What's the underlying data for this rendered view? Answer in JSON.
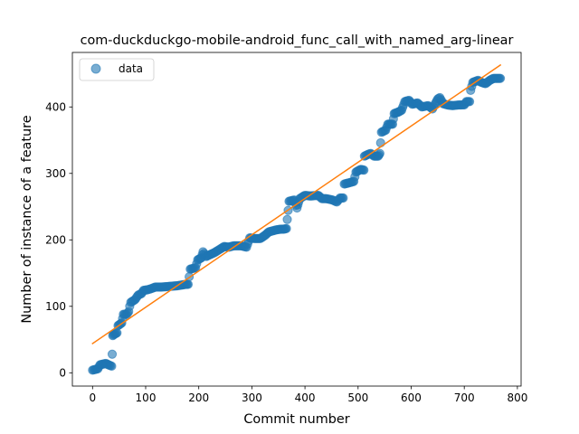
{
  "chart_data": {
    "type": "scatter",
    "title": "com-duckduckgo-mobile-android_func_call_with_named_arg-linear",
    "xlabel": "Commit number",
    "ylabel": "Number of instance of a feature",
    "xlim": [
      -38,
      807
    ],
    "ylim": [
      -20,
      482
    ],
    "xticks": [
      0,
      100,
      200,
      300,
      400,
      500,
      600,
      700,
      800
    ],
    "yticks": [
      0,
      100,
      200,
      300,
      400
    ],
    "grid": false,
    "legend": {
      "position": "top-left",
      "entries": [
        "data"
      ]
    },
    "colors": {
      "data": "#1f77b4",
      "fit": "#ff7f0e"
    },
    "series": [
      {
        "name": "data",
        "kind": "scatter",
        "anchors": [
          [
            0,
            4
          ],
          [
            10,
            6
          ],
          [
            14,
            12
          ],
          [
            25,
            14
          ],
          [
            30,
            12
          ],
          [
            36,
            10
          ],
          [
            37,
            28
          ],
          [
            38,
            56
          ],
          [
            41,
            58
          ],
          [
            46,
            60
          ],
          [
            48,
            71
          ],
          [
            55,
            75
          ],
          [
            58,
            88
          ],
          [
            64,
            88
          ],
          [
            68,
            92
          ],
          [
            70,
            100
          ],
          [
            72,
            106
          ],
          [
            80,
            110
          ],
          [
            86,
            117
          ],
          [
            92,
            119
          ],
          [
            96,
            124
          ],
          [
            104,
            125
          ],
          [
            112,
            127
          ],
          [
            118,
            129
          ],
          [
            130,
            129
          ],
          [
            145,
            130
          ],
          [
            160,
            131
          ],
          [
            175,
            133
          ],
          [
            180,
            133
          ],
          [
            184,
            156
          ],
          [
            194,
            158
          ],
          [
            198,
            170
          ],
          [
            205,
            173
          ],
          [
            208,
            182
          ],
          [
            214,
            175
          ],
          [
            222,
            178
          ],
          [
            230,
            181
          ],
          [
            240,
            186
          ],
          [
            248,
            190
          ],
          [
            256,
            189
          ],
          [
            266,
            191
          ],
          [
            280,
            191
          ],
          [
            290,
            189
          ],
          [
            296,
            203
          ],
          [
            305,
            202
          ],
          [
            316,
            202
          ],
          [
            325,
            207
          ],
          [
            332,
            212
          ],
          [
            346,
            215
          ],
          [
            354,
            216
          ],
          [
            360,
            216
          ],
          [
            365,
            217
          ],
          [
            370,
            258
          ],
          [
            380,
            260
          ],
          [
            385,
            248
          ],
          [
            390,
            262
          ],
          [
            400,
            267
          ],
          [
            410,
            266
          ],
          [
            425,
            267
          ],
          [
            432,
            262
          ],
          [
            440,
            262
          ],
          [
            452,
            260
          ],
          [
            460,
            257
          ],
          [
            466,
            263
          ],
          [
            472,
            263
          ],
          [
            474,
            284
          ],
          [
            484,
            286
          ],
          [
            492,
            288
          ],
          [
            496,
            302
          ],
          [
            505,
            306
          ],
          [
            511,
            305
          ],
          [
            512,
            326
          ],
          [
            520,
            329
          ],
          [
            524,
            330
          ],
          [
            530,
            326
          ],
          [
            538,
            326
          ],
          [
            541,
            330
          ],
          [
            544,
            362
          ],
          [
            552,
            365
          ],
          [
            556,
            374
          ],
          [
            565,
            374
          ],
          [
            568,
            390
          ],
          [
            575,
            392
          ],
          [
            582,
            395
          ],
          [
            588,
            408
          ],
          [
            596,
            410
          ],
          [
            602,
            404
          ],
          [
            612,
            406
          ],
          [
            620,
            400
          ],
          [
            632,
            402
          ],
          [
            640,
            397
          ],
          [
            650,
            412
          ],
          [
            654,
            414
          ],
          [
            660,
            405
          ],
          [
            668,
            403
          ],
          [
            678,
            402
          ],
          [
            690,
            403
          ],
          [
            700,
            403
          ],
          [
            704,
            408
          ],
          [
            710,
            408
          ],
          [
            712,
            425
          ],
          [
            716,
            437
          ],
          [
            726,
            440
          ],
          [
            732,
            437
          ],
          [
            740,
            435
          ],
          [
            748,
            440
          ],
          [
            755,
            443
          ],
          [
            768,
            443
          ]
        ]
      },
      {
        "name": "",
        "kind": "line",
        "x": [
          0,
          768
        ],
        "y": [
          44,
          463
        ]
      }
    ]
  }
}
